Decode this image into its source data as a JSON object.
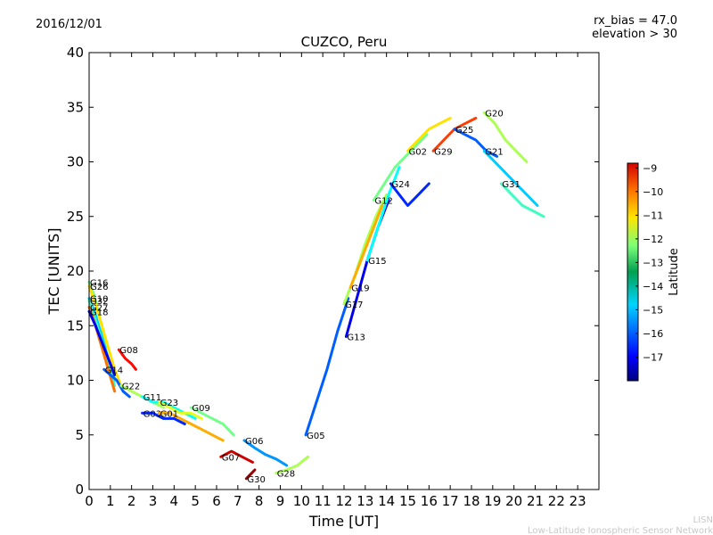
{
  "header": {
    "date": "2016/12/01",
    "rx_bias": "rx_bias = 47.0",
    "elevation": "elevation > 30"
  },
  "credits": {
    "line1": "LISN",
    "line2": "Low-Latitude Ionospheric Sensor Network"
  },
  "chart_data": {
    "type": "scatter",
    "title": "CUZCO, Peru",
    "xlabel": "Time [UT]",
    "ylabel": "TEC [UNITS]",
    "xlim": [
      0,
      24
    ],
    "ylim": [
      0,
      40
    ],
    "xticks": [
      0,
      1,
      2,
      3,
      4,
      5,
      6,
      7,
      8,
      9,
      10,
      11,
      12,
      13,
      14,
      15,
      16,
      17,
      18,
      19,
      20,
      21,
      22,
      23
    ],
    "yticks": [
      0,
      5,
      10,
      15,
      20,
      25,
      30,
      35,
      40
    ],
    "grid": false,
    "colorbar": {
      "label": "Latitude",
      "range": [
        -18,
        -8.8
      ],
      "ticks": [
        -9,
        -10,
        -11,
        -12,
        -13,
        -14,
        -15,
        -16,
        -17
      ]
    },
    "series": [
      {
        "name": "G16",
        "x": [
          0.0,
          0.2,
          0.4,
          0.6,
          0.8
        ],
        "y": [
          19.0,
          18.0,
          16.5,
          15.0,
          13.0
        ],
        "lat": -13.5
      },
      {
        "name": "G26",
        "x": [
          0.0,
          0.3,
          0.6,
          0.9,
          1.2,
          1.5
        ],
        "y": [
          18.6,
          17.0,
          15.0,
          13.0,
          11.0,
          9.5
        ],
        "lat": -12.0
      },
      {
        "name": "G10",
        "x": [
          0.0,
          0.3,
          0.6,
          0.9,
          1.2
        ],
        "y": [
          17.5,
          16.0,
          14.0,
          12.0,
          10.0
        ],
        "lat": -15.0
      },
      {
        "name": "G32",
        "x": [
          0.0,
          0.3,
          0.6,
          0.9,
          1.2
        ],
        "y": [
          17.3,
          15.5,
          13.5,
          11.5,
          9.5
        ],
        "lat": -14.0
      },
      {
        "name": "G27",
        "x": [
          0.0,
          0.3,
          0.6,
          0.9,
          1.2
        ],
        "y": [
          16.7,
          15.0,
          13.0,
          11.0,
          9.0
        ],
        "lat": -11.0
      },
      {
        "name": "G18",
        "x": [
          0.0,
          0.3,
          0.6,
          0.9,
          1.2
        ],
        "y": [
          16.3,
          15.0,
          13.5,
          12.0,
          10.5
        ],
        "lat": -17.0
      },
      {
        "name": "G14",
        "x": [
          0.7,
          1.0,
          1.3,
          1.6,
          1.9
        ],
        "y": [
          11.0,
          10.5,
          10.0,
          9.0,
          8.5
        ],
        "lat": -16.0
      },
      {
        "name": "G08",
        "x": [
          1.4,
          1.7,
          2.0,
          2.2
        ],
        "y": [
          12.8,
          12.0,
          11.5,
          11.0
        ],
        "lat": -10.0
      },
      {
        "name": "G22",
        "x": [
          1.5,
          2.0,
          2.5,
          3.0,
          3.5
        ],
        "y": [
          9.5,
          9.0,
          8.5,
          8.0,
          7.5
        ],
        "lat": -13.0
      },
      {
        "name": "G11",
        "x": [
          2.5,
          3.0,
          3.5,
          4.0,
          4.5,
          5.0
        ],
        "y": [
          8.5,
          8.0,
          8.0,
          7.5,
          7.0,
          6.5
        ],
        "lat": -14.5
      },
      {
        "name": "G23",
        "x": [
          3.3,
          3.8,
          4.3,
          4.8,
          5.3
        ],
        "y": [
          8.0,
          7.5,
          7.0,
          7.0,
          6.5
        ],
        "lat": -12.5
      },
      {
        "name": "G03",
        "x": [
          2.5,
          3.0,
          3.5,
          4.0,
          4.5
        ],
        "y": [
          7.0,
          7.0,
          6.5,
          6.5,
          6.0
        ],
        "lat": -16.5
      },
      {
        "name": "G01",
        "x": [
          3.3,
          3.8,
          4.3,
          4.8,
          5.3,
          5.8,
          6.3
        ],
        "y": [
          7.0,
          7.0,
          6.5,
          6.0,
          5.5,
          5.0,
          4.5
        ],
        "lat": -11.5
      },
      {
        "name": "G09",
        "x": [
          4.8,
          5.3,
          5.8,
          6.3,
          6.8
        ],
        "y": [
          7.5,
          7.0,
          6.5,
          6.0,
          5.0
        ],
        "lat": -13.5
      },
      {
        "name": "G07",
        "x": [
          6.2,
          6.7,
          7.2,
          7.7
        ],
        "y": [
          3.0,
          3.5,
          3.0,
          2.5
        ],
        "lat": -9.5
      },
      {
        "name": "G06",
        "x": [
          7.3,
          7.8,
          8.3,
          8.8,
          9.3
        ],
        "y": [
          4.5,
          3.8,
          3.2,
          2.8,
          2.2
        ],
        "lat": -15.5
      },
      {
        "name": "G30",
        "x": [
          7.4,
          7.6,
          7.8
        ],
        "y": [
          1.0,
          1.4,
          1.8
        ],
        "lat": -9.0
      },
      {
        "name": "G28",
        "x": [
          8.8,
          9.3,
          9.8,
          10.3
        ],
        "y": [
          1.5,
          1.8,
          2.2,
          3.0
        ],
        "lat": -13.0
      },
      {
        "name": "G05",
        "x": [
          10.2,
          10.7,
          11.2,
          11.7,
          12.2
        ],
        "y": [
          5.0,
          8.0,
          11.0,
          14.5,
          17.5
        ],
        "lat": -16.0
      },
      {
        "name": "G13",
        "x": [
          12.1,
          12.6,
          13.1,
          13.6,
          14.1
        ],
        "y": [
          14.0,
          17.5,
          21.0,
          24.0,
          26.5
        ],
        "lat": -17.0
      },
      {
        "name": "G17",
        "x": [
          12.0,
          12.5,
          13.0,
          13.5,
          14.0
        ],
        "y": [
          17.0,
          19.5,
          22.5,
          25.0,
          27.0
        ],
        "lat": -13.0
      },
      {
        "name": "G19",
        "x": [
          12.3,
          12.8,
          13.3,
          13.8
        ],
        "y": [
          18.5,
          21.0,
          23.5,
          26.0
        ],
        "lat": -11.5
      },
      {
        "name": "G15",
        "x": [
          13.1,
          13.6,
          14.1,
          14.6
        ],
        "y": [
          21.0,
          24.0,
          27.0,
          29.5
        ],
        "lat": -14.5
      },
      {
        "name": "G12",
        "x": [
          13.4,
          13.9,
          14.4,
          14.9,
          15.4,
          15.9
        ],
        "y": [
          26.5,
          28.0,
          29.5,
          30.5,
          31.5,
          32.5
        ],
        "lat": -13.5
      },
      {
        "name": "G24",
        "x": [
          14.2,
          14.6,
          15.0,
          15.5,
          16.0
        ],
        "y": [
          28.0,
          27.0,
          26.0,
          27.0,
          28.0
        ],
        "lat": -16.5
      },
      {
        "name": "G02",
        "x": [
          15.0,
          15.5,
          16.0,
          16.5,
          17.0
        ],
        "y": [
          31.0,
          32.0,
          33.0,
          33.5,
          34.0
        ],
        "lat": -12.0
      },
      {
        "name": "G29",
        "x": [
          16.2,
          16.7,
          17.2,
          17.7,
          18.2
        ],
        "y": [
          31.0,
          32.0,
          33.0,
          33.5,
          34.0
        ],
        "lat": -10.5
      },
      {
        "name": "G25",
        "x": [
          17.2,
          17.7,
          18.2,
          18.7,
          19.2
        ],
        "y": [
          33.0,
          32.5,
          32.0,
          31.0,
          30.5
        ],
        "lat": -16.0
      },
      {
        "name": "G20",
        "x": [
          18.6,
          19.1,
          19.6,
          20.1,
          20.6
        ],
        "y": [
          34.5,
          33.5,
          32.0,
          31.0,
          30.0
        ],
        "lat": -13.0
      },
      {
        "name": "G21",
        "x": [
          18.6,
          19.1,
          19.6,
          20.1,
          20.6,
          21.1
        ],
        "y": [
          31.0,
          30.0,
          29.0,
          28.0,
          27.0,
          26.0
        ],
        "lat": -15.0
      },
      {
        "name": "G31",
        "x": [
          19.4,
          19.9,
          20.4,
          20.9,
          21.4
        ],
        "y": [
          28.0,
          27.0,
          26.0,
          25.5,
          25.0
        ],
        "lat": -14.0
      }
    ]
  }
}
